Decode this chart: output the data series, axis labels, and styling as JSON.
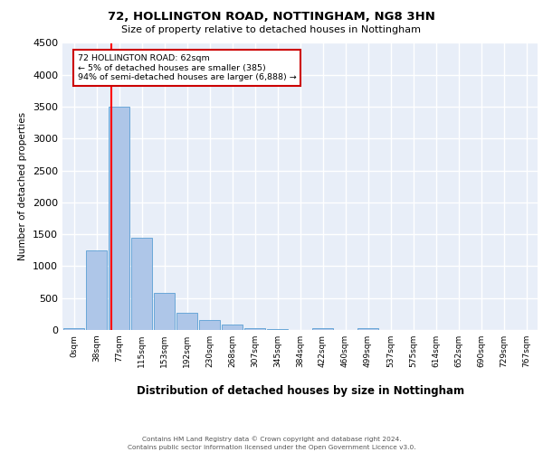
{
  "title1": "72, HOLLINGTON ROAD, NOTTINGHAM, NG8 3HN",
  "title2": "Size of property relative to detached houses in Nottingham",
  "xlabel": "Distribution of detached houses by size in Nottingham",
  "ylabel": "Number of detached properties",
  "bin_labels": [
    "0sqm",
    "38sqm",
    "77sqm",
    "115sqm",
    "153sqm",
    "192sqm",
    "230sqm",
    "268sqm",
    "307sqm",
    "345sqm",
    "384sqm",
    "422sqm",
    "460sqm",
    "499sqm",
    "537sqm",
    "575sqm",
    "614sqm",
    "652sqm",
    "690sqm",
    "729sqm",
    "767sqm"
  ],
  "bar_values": [
    30,
    1250,
    3500,
    1450,
    580,
    270,
    150,
    80,
    30,
    15,
    5,
    30,
    0,
    30,
    0,
    0,
    0,
    0,
    0,
    0,
    0
  ],
  "bar_color": "#aec6e8",
  "bar_edgecolor": "#5a9fd4",
  "bg_color": "#e8eef8",
  "grid_color": "#ffffff",
  "red_line_x": 1.65,
  "annotation_text": "72 HOLLINGTON ROAD: 62sqm\n← 5% of detached houses are smaller (385)\n94% of semi-detached houses are larger (6,888) →",
  "annotation_box_color": "#ffffff",
  "annotation_box_edgecolor": "#cc0000",
  "ylim": [
    0,
    4500
  ],
  "yticks": [
    0,
    500,
    1000,
    1500,
    2000,
    2500,
    3000,
    3500,
    4000,
    4500
  ],
  "footer1": "Contains HM Land Registry data © Crown copyright and database right 2024.",
  "footer2": "Contains public sector information licensed under the Open Government Licence v3.0."
}
